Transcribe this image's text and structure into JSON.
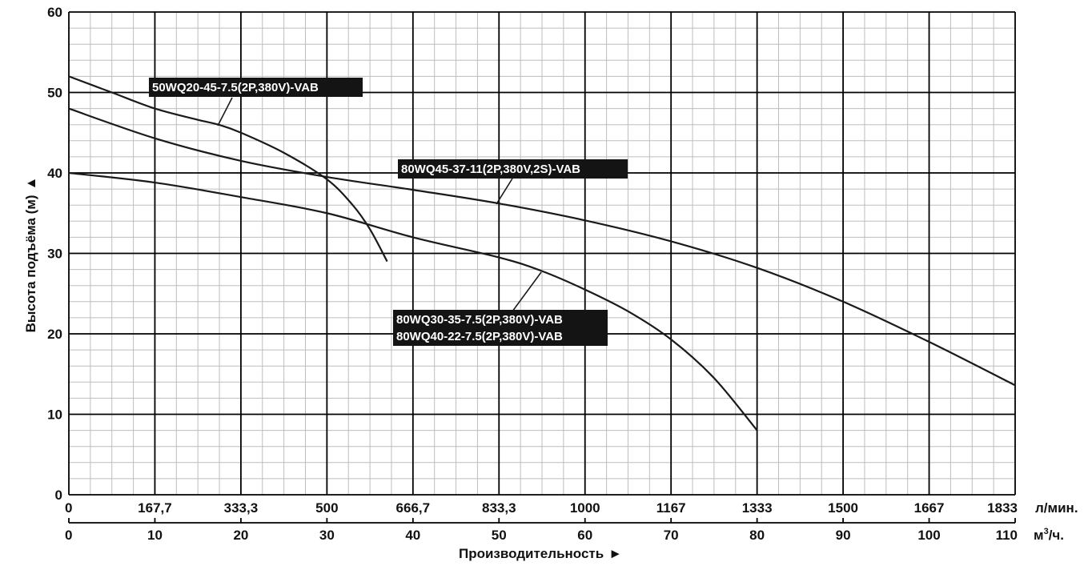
{
  "chart_data": {
    "type": "line",
    "title": "",
    "ylabel": "Высота подъёма (м)",
    "ylabel_arrow": "▲",
    "xlabel": "Производительность",
    "xlabel_arrow": "►",
    "ylim": [
      0,
      60
    ],
    "xlim": [
      0,
      110
    ],
    "y_ticks": [
      "0",
      "10",
      "20",
      "30",
      "40",
      "50",
      "60"
    ],
    "x_ticks_m3h": [
      "0",
      "10",
      "20",
      "30",
      "40",
      "50",
      "60",
      "70",
      "80",
      "90",
      "100",
      "110"
    ],
    "x_ticks_lmin": [
      "0",
      "167,7",
      "333,3",
      "500",
      "666,7",
      "833,3",
      "1000",
      "1167",
      "1333",
      "1500",
      "1667",
      "1833"
    ],
    "unit_lmin": "л/мин.",
    "unit_m3h_prefix": "м",
    "unit_m3h_sup": "3",
    "unit_m3h_suffix": "/ч.",
    "grid": true,
    "series": [
      {
        "name": "50WQ20-45-7.5(2P,380V)-VAB",
        "x": [
          0,
          5,
          10,
          15,
          17.4,
          20,
          25,
          30,
          33,
          35,
          37
        ],
        "y": [
          52,
          50,
          48,
          46.6,
          46,
          45,
          42.5,
          39.2,
          36,
          33,
          29
        ]
      },
      {
        "name": "80WQ45-37-11(2P,380V,2S)-VAB",
        "x": [
          0,
          10,
          20,
          30,
          40,
          50,
          60,
          70,
          80,
          90,
          100,
          110
        ],
        "y": [
          48,
          44.3,
          41.5,
          39.5,
          37.9,
          36.2,
          34.1,
          31.5,
          28.2,
          24,
          19,
          13.6
        ]
      },
      {
        "name": "80WQ30-35-7.5(2P,380V)-VAB / 80WQ40-22-7.5(2P,380V)-VAB",
        "x": [
          0,
          10,
          20,
          30,
          40,
          50,
          55,
          60,
          65,
          70,
          75,
          80
        ],
        "y": [
          40,
          38.8,
          37,
          35,
          32,
          29.5,
          27.8,
          25.5,
          22.8,
          19.3,
          14.5,
          8
        ]
      }
    ],
    "labels": [
      {
        "series_index": 0,
        "lines": [
          "50WQ20-45-7.5(2P,380V)-VAB"
        ]
      },
      {
        "series_index": 1,
        "lines": [
          "80WQ45-37-11(2P,380V,2S)-VAB"
        ]
      },
      {
        "series_index": 2,
        "lines": [
          "80WQ30-35-7.5(2P,380V)-VAB",
          "80WQ40-22-7.5(2P,380V)-VAB"
        ]
      }
    ]
  }
}
